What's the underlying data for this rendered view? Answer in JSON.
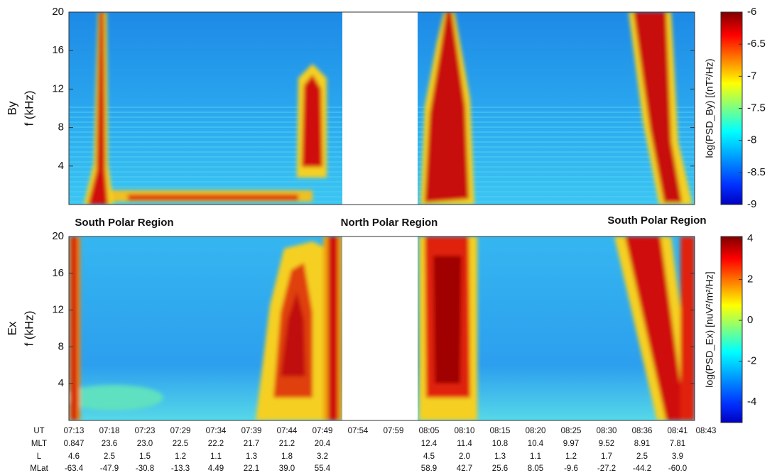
{
  "chart_data": [
    {
      "type": "heatmap",
      "panel_label": "By",
      "ylabel": "f (kHz)",
      "ylim": [
        0,
        20
      ],
      "yticks": [
        4,
        8,
        12,
        16,
        20
      ],
      "colorbar": {
        "label": "log(PSD_By)  [(nT²/Hz)",
        "clim": [
          -9,
          -6
        ],
        "ticks": [
          -6,
          -6.5,
          -7,
          -7.5,
          -8,
          -8.5,
          -9
        ]
      }
    },
    {
      "type": "heatmap",
      "panel_label": "Ex",
      "ylabel": "f (kHz)",
      "ylim": [
        0,
        20
      ],
      "yticks": [
        4,
        8,
        12,
        16,
        20
      ],
      "colorbar": {
        "label": "log(PSD_Ex) [nuV²/m²/Hz]",
        "clim": [
          -5,
          4.1
        ],
        "ticks": [
          4,
          2,
          0,
          -2,
          -4
        ]
      }
    }
  ],
  "regions": [
    "South Polar Region",
    "North Polar Region",
    "South Polar Region"
  ],
  "orbit_table": {
    "row_labels": [
      "UT",
      "MLT",
      "L",
      "MLat"
    ],
    "rows": [
      [
        "07:13",
        "07:18",
        "07:23",
        "07:29",
        "07:34",
        "07:39",
        "07:44",
        "07:49",
        "07:54",
        "07:59",
        "08:05",
        "08:10",
        "08:15",
        "08:20",
        "08:25",
        "08:30",
        "08:36",
        "08:41",
        "08:43"
      ],
      [
        "0.847",
        "23.6",
        "23.0",
        "22.5",
        "22.2",
        "21.7",
        "21.2",
        "20.4",
        null,
        null,
        "12.4",
        "11.4",
        "10.8",
        "10.4",
        "9.97",
        "9.52",
        "8.91",
        "7.81",
        null
      ],
      [
        "4.6",
        "2.5",
        "1.5",
        "1.2",
        "1.1",
        "1.3",
        "1.8",
        "3.2",
        null,
        null,
        "4.5",
        "2.0",
        "1.3",
        "1.1",
        "1.2",
        "1.7",
        "2.5",
        "3.9",
        null
      ],
      [
        "-63.4",
        "-47.9",
        "-30.8",
        "-13.3",
        "4.49",
        "22.1",
        "39.0",
        "55.4",
        null,
        null,
        "58.9",
        "42.7",
        "25.6",
        "8.05",
        "-9.6",
        "-27.2",
        "-44.2",
        "-60.0",
        null
      ]
    ]
  }
}
